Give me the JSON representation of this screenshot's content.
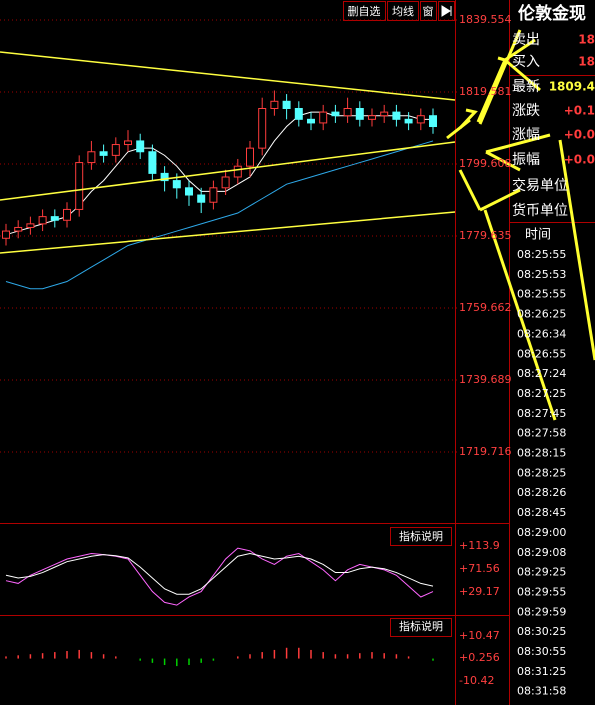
{
  "toolbar": {
    "buttons": [
      "删自选",
      "均线",
      "窗"
    ]
  },
  "chart_data": [
    {
      "type": "candlestick",
      "open": [
        1779,
        1781,
        1782,
        1783,
        1785,
        1784,
        1787,
        1800,
        1803,
        1802,
        1805,
        1806,
        1803,
        1797,
        1795,
        1793,
        1791,
        1789,
        1793,
        1796,
        1799,
        1804,
        1815,
        1817,
        1815,
        1812,
        1811,
        1814,
        1813,
        1815,
        1812,
        1813,
        1814,
        1812,
        1811,
        1813
      ],
      "high": [
        1783,
        1784,
        1785,
        1787,
        1787,
        1789,
        1802,
        1806,
        1805,
        1807,
        1809,
        1808,
        1805,
        1799,
        1797,
        1795,
        1793,
        1795,
        1798,
        1801,
        1806,
        1818,
        1820,
        1819,
        1817,
        1814,
        1816,
        1816,
        1818,
        1817,
        1815,
        1816,
        1816,
        1814,
        1815,
        1815
      ],
      "low": [
        1777,
        1779,
        1780,
        1781,
        1782,
        1782,
        1785,
        1798,
        1800,
        1800,
        1803,
        1801,
        1795,
        1792,
        1790,
        1788,
        1786,
        1787,
        1791,
        1794,
        1796,
        1802,
        1813,
        1812,
        1810,
        1809,
        1809,
        1811,
        1811,
        1810,
        1810,
        1811,
        1810,
        1809,
        1809,
        1808
      ],
      "close": [
        1781,
        1782,
        1783,
        1785,
        1784,
        1787,
        1800,
        1803,
        1802,
        1805,
        1806,
        1803,
        1797,
        1795,
        1793,
        1791,
        1789,
        1793,
        1796,
        1799,
        1804,
        1815,
        1817,
        1815,
        1812,
        1811,
        1814,
        1813,
        1815,
        1812,
        1813,
        1814,
        1812,
        1811,
        1813,
        1810
      ],
      "up_color": "#ff3c3c",
      "down_color": "#54ffff",
      "lines": [
        {
          "color": "#ffffff",
          "values": [
            1780,
            1781,
            1782,
            1783,
            1784,
            1785,
            1788,
            1792,
            1795,
            1799,
            1803,
            1804,
            1804,
            1802,
            1799,
            1795,
            1792,
            1792,
            1792,
            1794,
            1796,
            1801,
            1806,
            1810,
            1813,
            1814,
            1814,
            1813,
            1813,
            1813,
            1813,
            1813,
            1813,
            1813,
            1812,
            1812
          ]
        },
        {
          "color": "#2ea8e8",
          "values": [
            1767,
            1766,
            1765,
            1765,
            1766,
            1767,
            1769,
            1771,
            1773,
            1775,
            1777,
            1778,
            1779,
            1780,
            1781,
            1782,
            1783,
            1784,
            1785,
            1786,
            1788,
            1790,
            1792,
            1794,
            1795,
            1796,
            1797,
            1798,
            1799,
            1800,
            1801,
            1802,
            1803,
            1804,
            1805,
            1806
          ]
        }
      ],
      "ylim": [
        1700.29,
        1845.1
      ],
      "yticks": [
        1839.554,
        1819.581,
        1799.608,
        1779.635,
        1759.662,
        1739.689,
        1719.716
      ],
      "grid": true
    },
    {
      "type": "line",
      "title": "指标说明",
      "series": [
        {
          "color": "#ff66ff",
          "values": [
            50,
            45,
            60,
            70,
            80,
            90,
            95,
            100,
            98,
            95,
            90,
            60,
            30,
            10,
            5,
            20,
            30,
            60,
            90,
            110,
            105,
            90,
            80,
            95,
            100,
            85,
            70,
            50,
            70,
            80,
            75,
            70,
            60,
            40,
            20,
            30
          ]
        },
        {
          "color": "#ffffff",
          "values": [
            60,
            55,
            58,
            65,
            75,
            85,
            90,
            95,
            98,
            96,
            92,
            75,
            55,
            35,
            25,
            25,
            35,
            55,
            75,
            95,
            100,
            95,
            90,
            92,
            95,
            90,
            80,
            65,
            65,
            72,
            75,
            72,
            65,
            55,
            45,
            40
          ]
        }
      ],
      "ylim": [
        -13.2,
        152.6
      ],
      "yticks": [
        {
          "value": 113.9,
          "label": "+113.9"
        },
        {
          "value": 71.56,
          "label": "+71.56"
        },
        {
          "value": 29.17,
          "label": "+29.17"
        }
      ]
    },
    {
      "type": "bar",
      "title": "指标说明",
      "values": [
        1,
        1.5,
        2,
        2.5,
        3,
        3.5,
        4,
        3,
        2,
        1,
        0,
        -1,
        -2,
        -3,
        -3.5,
        -3,
        -2,
        -1,
        0,
        1,
        2,
        3,
        4,
        5,
        5,
        4,
        3,
        2,
        2,
        2.5,
        3,
        2.5,
        2,
        1,
        0,
        -1
      ],
      "up_color": "#ff3c3c",
      "down_color": "#00d000",
      "ylim": [
        -21.56,
        19.29
      ],
      "yticks": [
        {
          "value": 10.47,
          "label": "+10.47"
        },
        {
          "value": 0.256,
          "label": "+0.256"
        },
        {
          "value": -10.42,
          "label": "-10.42"
        }
      ]
    }
  ],
  "quote_panel": {
    "title": "伦敦金现",
    "rows": [
      [
        "卖出",
        "18"
      ],
      [
        "买入",
        "18"
      ],
      [
        "最新",
        "1809.4"
      ],
      [
        "涨跌",
        "+0.1"
      ],
      [
        "涨幅",
        "+0.0"
      ],
      [
        "振幅",
        "+0.0"
      ],
      [
        "交易单位",
        ""
      ],
      [
        "货币单位",
        ""
      ]
    ],
    "time_header": "时间",
    "times": [
      "08:25:55",
      "08:25:53",
      "08:25:55",
      "08:26:25",
      "08:26:34",
      "08:26:55",
      "08:27:24",
      "08:27:25",
      "08:27:45",
      "08:27:58",
      "08:28:15",
      "08:28:25",
      "08:28:26",
      "08:28:45",
      "08:29:00",
      "08:29:08",
      "08:29:25",
      "08:29:55",
      "08:29:59",
      "08:30:25",
      "08:30:55",
      "08:31:25",
      "08:31:58"
    ]
  }
}
